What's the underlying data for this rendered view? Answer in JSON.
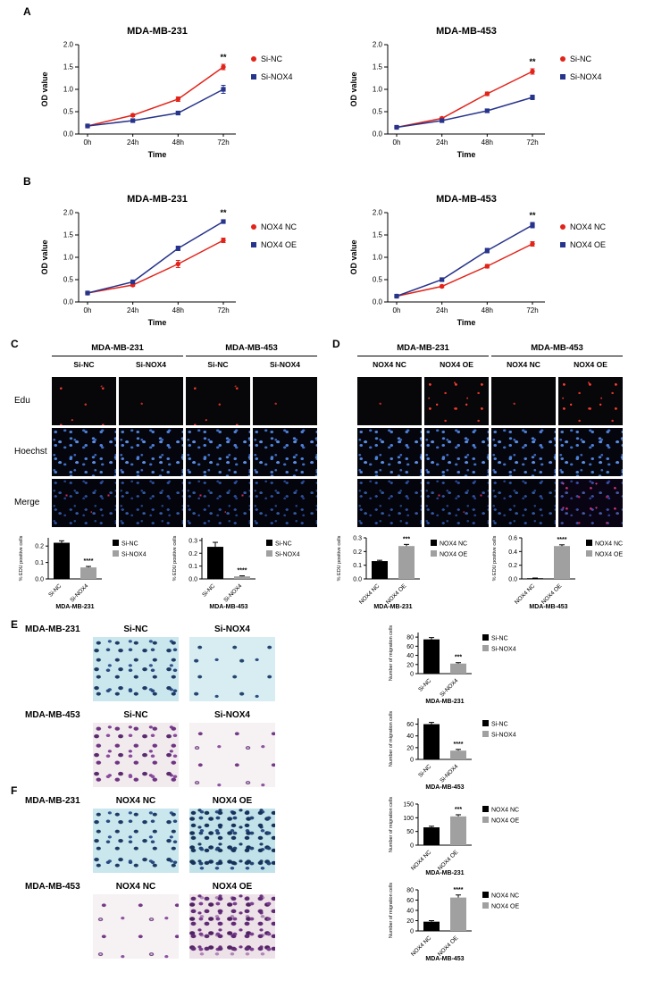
{
  "labels": {
    "A": "A",
    "B": "B",
    "C": "C",
    "D": "D",
    "E": "E",
    "F": "F"
  },
  "colors": {
    "nc_red": "#e2231a",
    "treat_blue": "#27348b",
    "bar_black": "#000000",
    "bar_gray": "#a0a0a0"
  },
  "chart_data": [
    {
      "type": "line",
      "title": "MDA-MB-231",
      "xlabel": "Time",
      "ylabel": "OD value",
      "x": [
        "0h",
        "24h",
        "48h",
        "72h"
      ],
      "ylim": [
        0,
        2.0
      ],
      "yticks": [
        0,
        0.5,
        1.0,
        1.5,
        2.0
      ],
      "grid": false,
      "legend_position": "right",
      "series": [
        {
          "name": "Si-NC",
          "color": "#e2231a",
          "marker": "circle",
          "values": [
            0.18,
            0.42,
            0.78,
            1.5
          ],
          "errors": [
            0.02,
            0.03,
            0.05,
            0.06
          ]
        },
        {
          "name": "Si-NOX4",
          "color": "#27348b",
          "marker": "square",
          "values": [
            0.18,
            0.3,
            0.47,
            1.0
          ],
          "errors": [
            0.02,
            0.02,
            0.03,
            0.09
          ]
        }
      ],
      "annotation": {
        "text": "**",
        "series": 0,
        "point": 3
      }
    },
    {
      "type": "line",
      "title": "MDA-MB-453",
      "xlabel": "Time",
      "ylabel": "OD value",
      "x": [
        "0h",
        "24h",
        "48h",
        "72h"
      ],
      "ylim": [
        0,
        2.0
      ],
      "yticks": [
        0,
        0.5,
        1.0,
        1.5,
        2.0
      ],
      "grid": false,
      "legend_position": "right",
      "series": [
        {
          "name": "Si-NC",
          "color": "#e2231a",
          "marker": "circle",
          "values": [
            0.15,
            0.35,
            0.9,
            1.4
          ],
          "errors": [
            0.02,
            0.03,
            0.04,
            0.06
          ]
        },
        {
          "name": "Si-NOX4",
          "color": "#27348b",
          "marker": "square",
          "values": [
            0.15,
            0.3,
            0.52,
            0.82
          ],
          "errors": [
            0.02,
            0.02,
            0.04,
            0.05
          ]
        }
      ],
      "annotation": {
        "text": "**",
        "series": 0,
        "point": 3
      }
    },
    {
      "type": "line",
      "title": "MDA-MB-231",
      "xlabel": "Time",
      "ylabel": "OD value",
      "x": [
        "0h",
        "24h",
        "48h",
        "72h"
      ],
      "ylim": [
        0,
        2.0
      ],
      "yticks": [
        0,
        0.5,
        1.0,
        1.5,
        2.0
      ],
      "grid": false,
      "legend_position": "right",
      "series": [
        {
          "name": "NOX4 NC",
          "color": "#e2231a",
          "marker": "circle",
          "values": [
            0.2,
            0.38,
            0.85,
            1.38
          ],
          "errors": [
            0.02,
            0.03,
            0.08,
            0.05
          ]
        },
        {
          "name": "NOX4 OE",
          "color": "#27348b",
          "marker": "square",
          "values": [
            0.2,
            0.45,
            1.2,
            1.8
          ],
          "errors": [
            0.02,
            0.03,
            0.05,
            0.04
          ]
        }
      ],
      "annotation": {
        "text": "**",
        "series": 1,
        "point": 3
      }
    },
    {
      "type": "line",
      "title": "MDA-MB-453",
      "xlabel": "Time",
      "ylabel": "OD value",
      "x": [
        "0h",
        "24h",
        "48h",
        "72h"
      ],
      "ylim": [
        0,
        2.0
      ],
      "yticks": [
        0,
        0.5,
        1.0,
        1.5,
        2.0
      ],
      "grid": false,
      "legend_position": "right",
      "series": [
        {
          "name": "NOX4 NC",
          "color": "#e2231a",
          "marker": "circle",
          "values": [
            0.13,
            0.35,
            0.8,
            1.3
          ],
          "errors": [
            0.02,
            0.03,
            0.04,
            0.05
          ]
        },
        {
          "name": "NOX4 OE",
          "color": "#27348b",
          "marker": "square",
          "values": [
            0.13,
            0.5,
            1.15,
            1.72
          ],
          "errors": [
            0.02,
            0.03,
            0.05,
            0.06
          ]
        }
      ],
      "annotation": {
        "text": "**",
        "series": 1,
        "point": 3
      }
    },
    {
      "type": "bar",
      "categories": [
        "Si-NC",
        "Si-NOX4"
      ],
      "values": [
        0.22,
        0.07
      ],
      "errors": [
        0.012,
        0.006
      ],
      "colors": [
        "#000000",
        "#a0a0a0"
      ],
      "ylabel": "% EDU positive cells",
      "xlabel": "MDA-MB-231",
      "ylim": [
        0,
        0.25
      ],
      "yticks": [
        0,
        0.1,
        0.2
      ],
      "sig": {
        "text": "****",
        "index": 1
      },
      "legend_position": "right"
    },
    {
      "type": "bar",
      "categories": [
        "Si-NC",
        "Si-NOX4"
      ],
      "values": [
        0.25,
        0.02
      ],
      "errors": [
        0.035,
        0.004
      ],
      "colors": [
        "#000000",
        "#a0a0a0"
      ],
      "ylabel": "% EDU positive cells",
      "xlabel": "MDA-MB-453",
      "ylim": [
        0,
        0.32
      ],
      "yticks": [
        0,
        0.1,
        0.2,
        0.3
      ],
      "sig": {
        "text": "****",
        "index": 1
      },
      "legend_position": "right"
    },
    {
      "type": "bar",
      "categories": [
        "NOX4 NC",
        "NOX4 OE"
      ],
      "values": [
        0.13,
        0.24
      ],
      "errors": [
        0.006,
        0.012
      ],
      "colors": [
        "#000000",
        "#a0a0a0"
      ],
      "ylabel": "% EDU positive cells",
      "xlabel": "MDA-MB-231",
      "ylim": [
        0,
        0.3
      ],
      "yticks": [
        0,
        0.1,
        0.2,
        0.3
      ],
      "sig": {
        "text": "***",
        "index": 1
      },
      "legend_position": "right"
    },
    {
      "type": "bar",
      "categories": [
        "NOX4 NC",
        "NOX4 OE"
      ],
      "values": [
        0.01,
        0.48
      ],
      "errors": [
        0.003,
        0.018
      ],
      "colors": [
        "#000000",
        "#a0a0a0"
      ],
      "ylabel": "% EDU positive cells",
      "xlabel": "MDA-MB-453",
      "ylim": [
        0,
        0.6
      ],
      "yticks": [
        0,
        0.2,
        0.4,
        0.6
      ],
      "sig": {
        "text": "****",
        "index": 1
      },
      "legend_position": "right"
    },
    {
      "type": "bar",
      "categories": [
        "Si-NC",
        "Si-NOX4"
      ],
      "values": [
        75,
        22
      ],
      "errors": [
        4,
        2
      ],
      "colors": [
        "#000000",
        "#a0a0a0"
      ],
      "ylabel": "Number of migration cells",
      "xlabel": "MDA-MB-231",
      "ylim": [
        0,
        90
      ],
      "yticks": [
        0,
        20,
        40,
        60,
        80
      ],
      "sig": {
        "text": "***",
        "index": 1
      },
      "legend_position": "right"
    },
    {
      "type": "bar",
      "categories": [
        "Si-NC",
        "Si-NOX4"
      ],
      "values": [
        60,
        15
      ],
      "errors": [
        3,
        2
      ],
      "colors": [
        "#000000",
        "#a0a0a0"
      ],
      "ylabel": "Number of migration cells",
      "xlabel": "MDA-MB-453",
      "ylim": [
        0,
        70
      ],
      "yticks": [
        0,
        20,
        40,
        60
      ],
      "sig": {
        "text": "****",
        "index": 1
      },
      "legend_position": "right"
    },
    {
      "type": "bar",
      "categories": [
        "NOX4 NC",
        "NOX4 OE"
      ],
      "values": [
        65,
        105
      ],
      "errors": [
        4,
        6
      ],
      "colors": [
        "#000000",
        "#a0a0a0"
      ],
      "ylabel": "Number of migration cells",
      "xlabel": "MDA-MB-231",
      "ylim": [
        0,
        150
      ],
      "yticks": [
        0,
        50,
        100,
        150
      ],
      "sig": {
        "text": "***",
        "index": 1
      },
      "legend_position": "right"
    },
    {
      "type": "bar",
      "categories": [
        "NOX4 NC",
        "NOX4 OE"
      ],
      "values": [
        18,
        65
      ],
      "errors": [
        2,
        5
      ],
      "colors": [
        "#000000",
        "#a0a0a0"
      ],
      "ylabel": "Number of migration cells",
      "xlabel": "MDA-MB-453",
      "ylim": [
        0,
        80
      ],
      "yticks": [
        0,
        20,
        40,
        60,
        80
      ],
      "sig": {
        "text": "****",
        "index": 1
      },
      "legend_position": "right"
    }
  ],
  "panels": {
    "C": {
      "group_headers": [
        "MDA-MB-231",
        "MDA-MB-453"
      ],
      "col_headers": [
        "Si-NC",
        "Si-NOX4",
        "Si-NC",
        "Si-NOX4"
      ],
      "row_labels": [
        "Edu",
        "Hoechst",
        "Merge"
      ]
    },
    "D": {
      "group_headers": [
        "MDA-MB-231",
        "MDA-MB-453"
      ],
      "col_headers": [
        "NOX4 NC",
        "NOX4 OE",
        "NOX4 NC",
        "NOX4 OE"
      ]
    },
    "E": {
      "rows": [
        {
          "cell_line": "MDA-MB-231",
          "col_headers": [
            "Si-NC",
            "Si-NOX4"
          ]
        },
        {
          "cell_line": "MDA-MB-453",
          "col_headers": [
            "Si-NC",
            "Si-NOX4"
          ]
        }
      ]
    },
    "F": {
      "rows": [
        {
          "cell_line": "MDA-MB-231",
          "col_headers": [
            "NOX4 NC",
            "NOX4 OE"
          ]
        },
        {
          "cell_line": "MDA-MB-453",
          "col_headers": [
            "NOX4 NC",
            "NOX4 OE"
          ]
        }
      ]
    }
  }
}
